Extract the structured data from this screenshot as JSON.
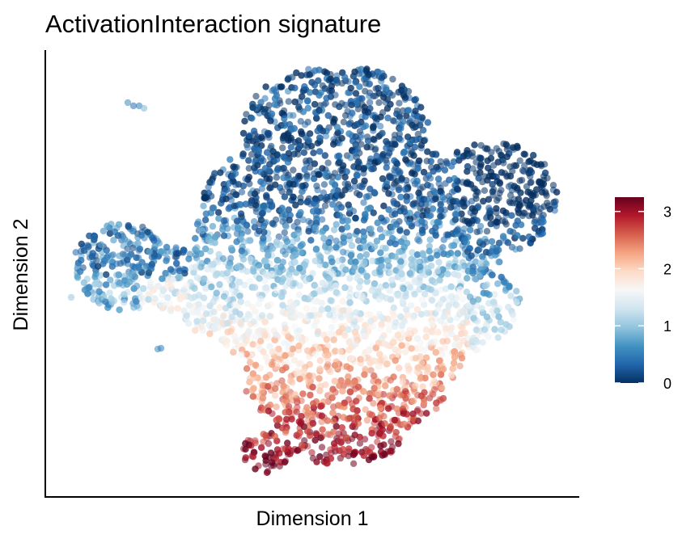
{
  "chart_data": {
    "type": "scatter",
    "title": "ActivationInteraction signature",
    "xlabel": "Dimension 1",
    "ylabel": "Dimension 2",
    "axis_ticks": "none",
    "grid": false,
    "colorbar": {
      "ticks": [
        "3",
        "2",
        "1",
        "0"
      ],
      "tick_values": [
        3,
        2,
        1,
        0
      ],
      "range": [
        0,
        3.25
      ],
      "colors": [
        "#053061",
        "#2166ac",
        "#4393c3",
        "#92c5de",
        "#d1e5f0",
        "#f7f7f7",
        "#fddbc7",
        "#f4a582",
        "#d6604d",
        "#b2182b",
        "#67001f"
      ],
      "placement": "right"
    },
    "point_opacity": 0.55
  }
}
